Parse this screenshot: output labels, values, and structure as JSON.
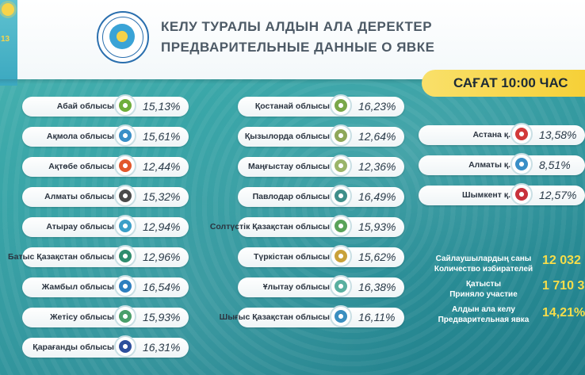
{
  "header": {
    "title_kz": "КЕЛУ ТУРАЛЫ АЛДЫН АЛА ДЕРЕКТЕР",
    "title_ru": "ПРЕДВАРИТЕЛЬНЫЕ ДАННЫЕ О ЯВКЕ",
    "time": "САҒАТ 10:00 ЧАС",
    "side_digits": "13"
  },
  "column1": [
    {
      "name": "Абай облысы",
      "pct": "15,13%",
      "logo_color": "#6fae3c"
    },
    {
      "name": "Ақмола облысы",
      "pct": "15,61%",
      "logo_color": "#3a8fc7"
    },
    {
      "name": "Ақтөбе облысы",
      "pct": "12,44%",
      "logo_color": "#e2582c"
    },
    {
      "name": "Алматы облысы",
      "pct": "15,32%",
      "logo_color": "#4a4a4a"
    },
    {
      "name": "Атырау облысы",
      "pct": "12,94%",
      "logo_color": "#3b9fc8"
    },
    {
      "name": "Батыс Қазақстан облысы",
      "pct": "12,96%",
      "logo_color": "#2f8d6f"
    },
    {
      "name": "Жамбыл облысы",
      "pct": "16,54%",
      "logo_color": "#2e7fbf"
    },
    {
      "name": "Жетісу облысы",
      "pct": "15,93%",
      "logo_color": "#4a9f6a"
    },
    {
      "name": "Қарағанды облысы",
      "pct": "16,31%",
      "logo_color": "#2c4f9c"
    }
  ],
  "column2": [
    {
      "name": "Қостанай облысы",
      "pct": "16,23%",
      "logo_color": "#7aa84a"
    },
    {
      "name": "Қызылорда облысы",
      "pct": "12,64%",
      "logo_color": "#8fa85a"
    },
    {
      "name": "Маңғыстау облысы",
      "pct": "12,36%",
      "logo_color": "#9bb56a"
    },
    {
      "name": "Павлодар облысы",
      "pct": "16,49%",
      "logo_color": "#3f8f8a"
    },
    {
      "name": "Солтүстік Қазақстан облысы",
      "pct": "15,93%",
      "logo_color": "#5aa35a"
    },
    {
      "name": "Түркістан облысы",
      "pct": "15,62%",
      "logo_color": "#c9a23a"
    },
    {
      "name": "Ұлытау облысы",
      "pct": "16,38%",
      "logo_color": "#5ab0a0"
    },
    {
      "name": "Шығыс Қазақстан облысы",
      "pct": "16,11%",
      "logo_color": "#3a8fc0"
    }
  ],
  "cities": [
    {
      "name": "Астана қ.",
      "pct": "13,58%",
      "logo_color": "#d23a3a"
    },
    {
      "name": "Алматы қ.",
      "pct": "8,51%",
      "logo_color": "#3a8fc7"
    },
    {
      "name": "Шымкент қ.",
      "pct": "12,57%",
      "logo_color": "#c8323c"
    }
  ],
  "stats": {
    "voters_label_kz": "Сайлаушылардың саны",
    "voters_label_ru": "Количество избирателей",
    "voters_value": "12 032",
    "turnout_label_kz": "Қатысты",
    "turnout_label_ru": "Приняло участие",
    "turnout_value": "1 710 3",
    "prelim_label_kz": "Алдын ала келу",
    "prelim_label_ru": "Предварительная явка",
    "prelim_value": "14,21%"
  }
}
